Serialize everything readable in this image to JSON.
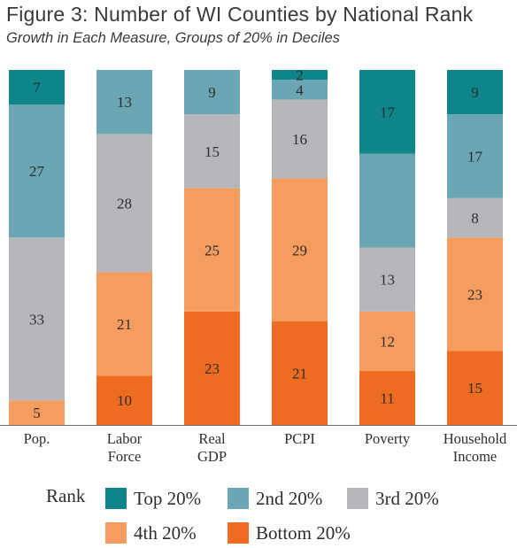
{
  "title": "Figure 3: Number of WI Counties by National Rank",
  "subtitle": "Growth in Each Measure, Groups of 20% in Deciles",
  "chart_data": {
    "type": "bar",
    "stacked": true,
    "categories": [
      "Pop.",
      "Labor Force",
      "Real GDP",
      "PCPI",
      "Poverty",
      "Household Income"
    ],
    "category_lines": [
      [
        "Pop."
      ],
      [
        "Labor",
        "Force"
      ],
      [
        "Real",
        "GDP"
      ],
      [
        "PCPI"
      ],
      [
        "Poverty"
      ],
      [
        "Household",
        "Income"
      ]
    ],
    "series": [
      {
        "name": "Bottom 20%",
        "color": "#ee6b22",
        "values": [
          0,
          10,
          23,
          21,
          11,
          15
        ]
      },
      {
        "name": "4th 20%",
        "color": "#f59d5e",
        "values": [
          5,
          21,
          25,
          29,
          12,
          23
        ]
      },
      {
        "name": "3rd 20%",
        "color": "#b6b7bb",
        "values": [
          33,
          28,
          15,
          16,
          13,
          8
        ]
      },
      {
        "name": "2nd 20%",
        "color": "#6aa6b4",
        "values": [
          27,
          13,
          9,
          4,
          19,
          17
        ]
      },
      {
        "name": "Top 20%",
        "color": "#0e8689",
        "values": [
          7,
          0,
          0,
          2,
          17,
          9
        ]
      }
    ],
    "hidden_labels": [
      [
        4,
        3
      ]
    ],
    "ylim": [
      0,
      72
    ],
    "legend_title": "Rank",
    "legend_order": [
      "Top 20%",
      "2nd 20%",
      "3rd 20%",
      "4th 20%",
      "Bottom 20%"
    ],
    "legend_placement": "bottom",
    "grid": false
  }
}
